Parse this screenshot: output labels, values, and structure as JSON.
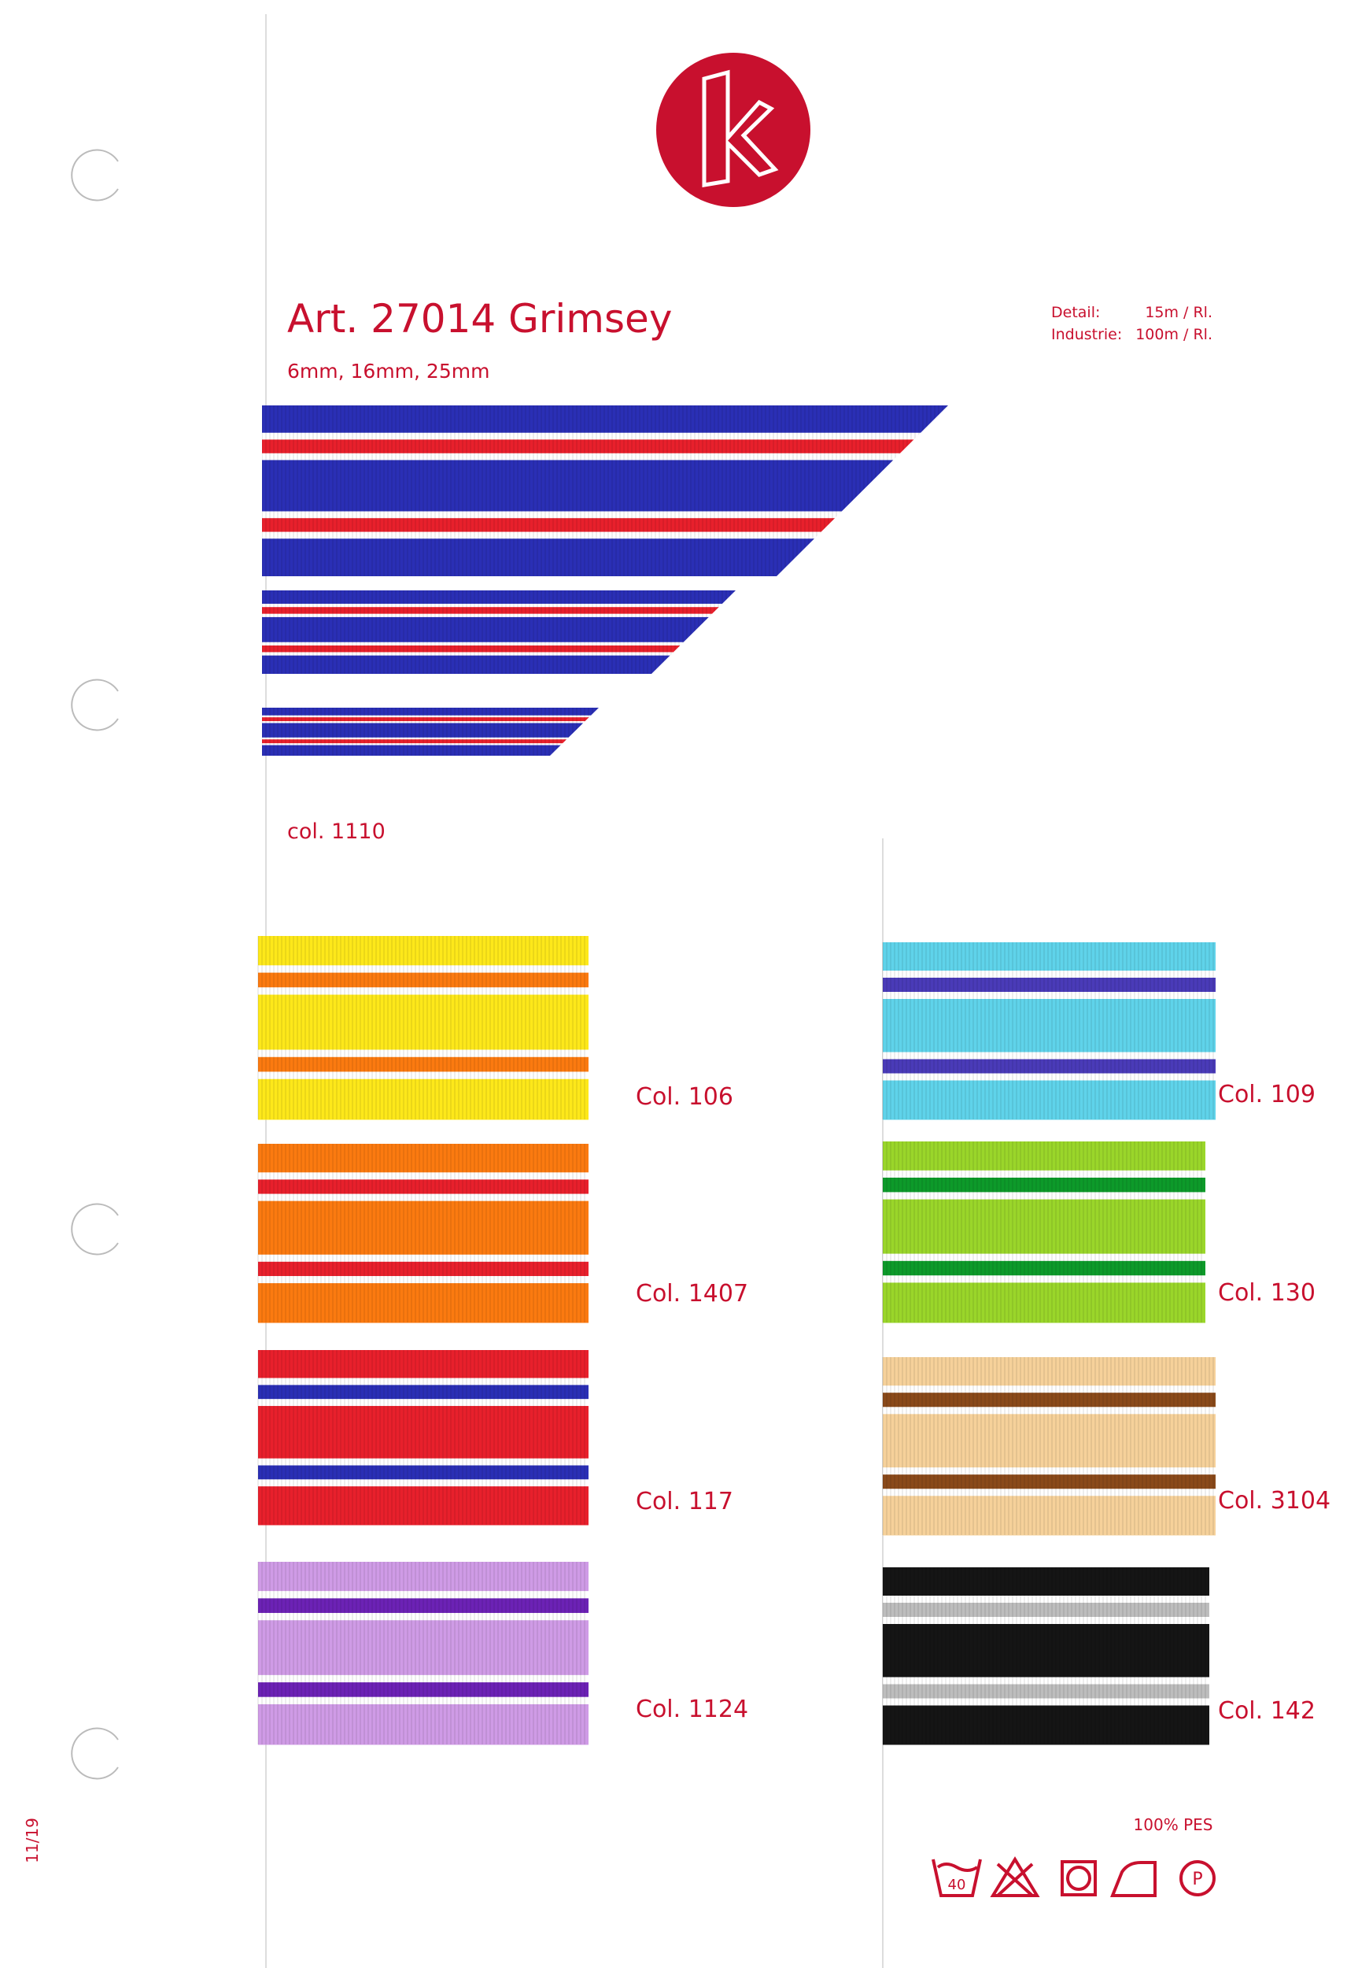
{
  "header": {
    "title": "Art. 27014 Grimsey",
    "sizes": "6mm, 16mm, 25mm",
    "detail_label": "Detail:",
    "detail_value": "15m / Rl.",
    "industry_label": "Industrie:",
    "industry_value": "100m / Rl."
  },
  "featured": {
    "label": "col. 1110"
  },
  "swatches": [
    {
      "label": "Col. 106"
    },
    {
      "label": "Col. 1407"
    },
    {
      "label": "Col. 117"
    },
    {
      "label": "Col. 1124"
    },
    {
      "label": "Col. 109"
    },
    {
      "label": "Col. 130"
    },
    {
      "label": "Col. 3104"
    },
    {
      "label": "Col. 142"
    }
  ],
  "footer": {
    "material": "100% PES",
    "wash_temp": "40",
    "dry_clean": "P",
    "date": "11/19"
  }
}
